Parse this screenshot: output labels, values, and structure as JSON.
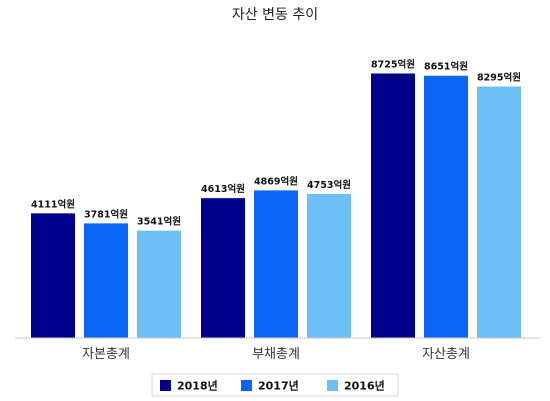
{
  "chart_data": {
    "type": "bar",
    "title": "자산 변동 추이",
    "xlabel": "",
    "ylabel": "",
    "categories": [
      "자본총계",
      "부채총계",
      "자산총계"
    ],
    "unit": "억원",
    "ylim": [
      0,
      9500
    ],
    "grid": false,
    "legend_position": "bottom",
    "series": [
      {
        "name": "2018년",
        "color": "#00008b",
        "values": [
          4111,
          4613,
          8725
        ],
        "labels": [
          "4111억원",
          "4613억원",
          "8725억원"
        ]
      },
      {
        "name": "2017년",
        "color": "#0a64f5",
        "values": [
          3781,
          4869,
          8651
        ],
        "labels": [
          "3781억원",
          "4869억원",
          "8651억원"
        ]
      },
      {
        "name": "2016년",
        "color": "#6ebef8",
        "values": [
          3541,
          4753,
          8295
        ],
        "labels": [
          "3541억원",
          "4753억원",
          "8295억원"
        ]
      }
    ]
  }
}
